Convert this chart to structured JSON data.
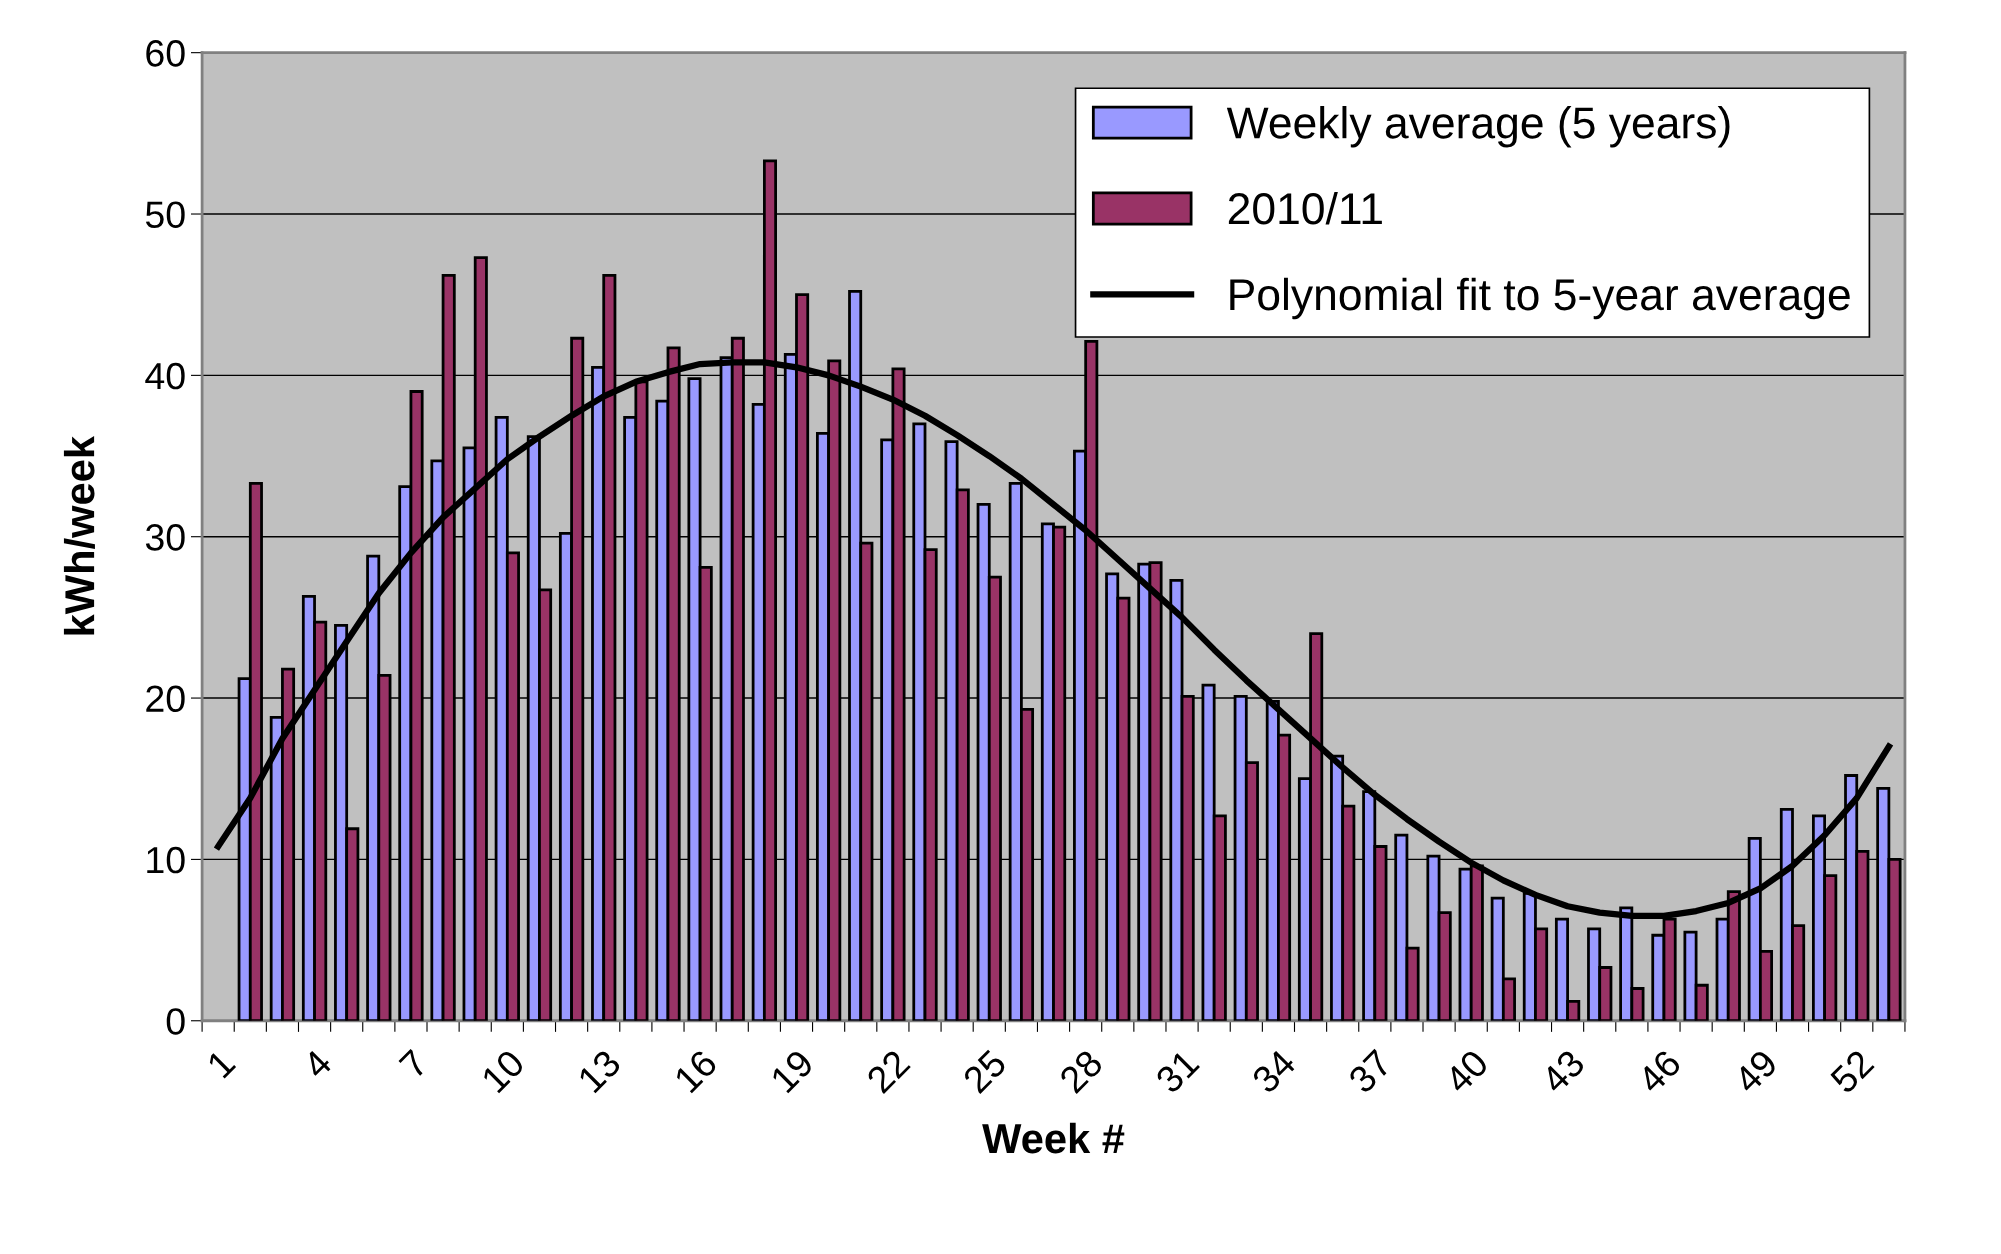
{
  "chart_data": {
    "type": "bar",
    "xlabel": "Week #",
    "ylabel": "kWh/week",
    "categories": [
      "1",
      null,
      null,
      "4",
      null,
      null,
      "7",
      null,
      null,
      "10",
      null,
      null,
      "13",
      null,
      null,
      "16",
      null,
      null,
      "19",
      null,
      null,
      "22",
      null,
      null,
      "25",
      null,
      null,
      "28",
      null,
      null,
      "31",
      null,
      null,
      "34",
      null,
      null,
      "37",
      null,
      null,
      "40",
      null,
      null,
      "43",
      null,
      null,
      "46",
      null,
      null,
      "49",
      null,
      null,
      "52",
      null
    ],
    "series": [
      {
        "name": "Weekly average (5 years)",
        "color": "#9999ff",
        "values": [
          null,
          21.2,
          18.8,
          26.3,
          24.5,
          28.8,
          33.1,
          34.7,
          35.5,
          37.4,
          36.2,
          30.2,
          40.5,
          37.4,
          38.4,
          39.8,
          41.1,
          38.2,
          41.3,
          36.4,
          45.2,
          36.0,
          37.0,
          35.9,
          32.0,
          33.3,
          30.8,
          35.3,
          27.7,
          28.3,
          27.3,
          20.8,
          20.1,
          19.8,
          15.0,
          16.4,
          14.2,
          11.5,
          10.2,
          9.4,
          7.6,
          7.9,
          6.3,
          5.7,
          7.0,
          5.3,
          5.5,
          6.3,
          11.3,
          13.1,
          12.7,
          15.2,
          14.4
        ]
      },
      {
        "name": "2010/11",
        "color": "#993366",
        "values": [
          null,
          33.3,
          21.8,
          24.7,
          11.9,
          21.4,
          39.0,
          46.2,
          47.3,
          29.0,
          26.7,
          42.3,
          46.2,
          39.6,
          41.7,
          28.1,
          42.3,
          53.3,
          45.0,
          40.9,
          29.6,
          40.4,
          29.2,
          32.9,
          27.5,
          19.3,
          30.6,
          42.1,
          26.2,
          28.4,
          20.1,
          12.7,
          16.0,
          17.7,
          24.0,
          13.3,
          10.8,
          4.5,
          6.7,
          9.6,
          2.6,
          5.7,
          1.2,
          3.3,
          2.0,
          6.3,
          2.2,
          8.0,
          4.3,
          5.9,
          9.0,
          10.5,
          10.0
        ]
      },
      {
        "name": "Polynomial fit to 5-year average",
        "type": "line",
        "color": "#000000",
        "values": [
          10.8,
          13.8,
          17.5,
          20.5,
          23.5,
          26.5,
          29.0,
          31.2,
          33.0,
          34.8,
          36.2,
          37.5,
          38.7,
          39.6,
          40.2,
          40.7,
          40.8,
          40.8,
          40.5,
          40.0,
          39.3,
          38.5,
          37.5,
          36.3,
          35.0,
          33.6,
          32.0,
          30.4,
          28.6,
          26.8,
          25.0,
          23.0,
          21.1,
          19.3,
          17.5,
          15.7,
          14.0,
          12.5,
          11.1,
          9.8,
          8.7,
          7.8,
          7.1,
          6.7,
          6.5,
          6.5,
          6.8,
          7.3,
          8.2,
          9.6,
          11.5,
          13.8,
          17.0
        ]
      }
    ],
    "ylim": [
      0,
      60
    ],
    "yticks": [
      0,
      10,
      20,
      30,
      40,
      50,
      60
    ],
    "grid": "y",
    "legend": "top right",
    "marker": "none",
    "line_style": "solid"
  }
}
